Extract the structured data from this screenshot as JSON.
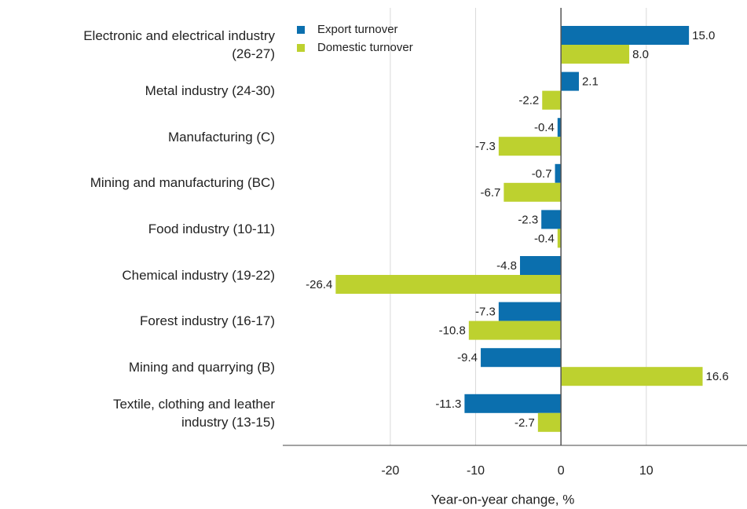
{
  "chart_data": {
    "type": "bar",
    "orientation": "horizontal",
    "categories": [
      "Electronic and electrical industry (26-27)",
      "Metal industry (24-30)",
      "Manufacturing (C)",
      "Mining and manufacturing (BC)",
      "Food industry (10-11)",
      "Chemical industry (19-22)",
      "Forest industry (16-17)",
      "Mining and quarrying (B)",
      "Textile, clothing and leather industry (13-15)"
    ],
    "series": [
      {
        "name": "Export turnover",
        "color": "#0b6fae",
        "values": [
          15.0,
          2.1,
          -0.4,
          -0.7,
          -2.3,
          -4.8,
          -7.3,
          -9.4,
          -11.3
        ],
        "value_labels": [
          "15.0",
          "2.1",
          "-0.4",
          "-0.7",
          "-2.3",
          "-4.8",
          "-7.3",
          "-9.4",
          "-11.3"
        ]
      },
      {
        "name": "Domestic turnover",
        "color": "#bdd12f",
        "values": [
          8.0,
          -2.2,
          -7.3,
          -6.7,
          -0.4,
          -26.4,
          -10.8,
          16.6,
          -2.7
        ],
        "value_labels": [
          "8.0",
          "-2.2",
          "-7.3",
          "-6.7",
          "-0.4",
          "-26.4",
          "-10.8",
          "16.6",
          "-2.7"
        ]
      }
    ],
    "xlabel": "Year-on-year change, %",
    "xlim": [
      -32.6,
      21.8
    ],
    "xticks": [
      -20,
      -10,
      0,
      10
    ],
    "grid": true,
    "legend": "top-left"
  }
}
